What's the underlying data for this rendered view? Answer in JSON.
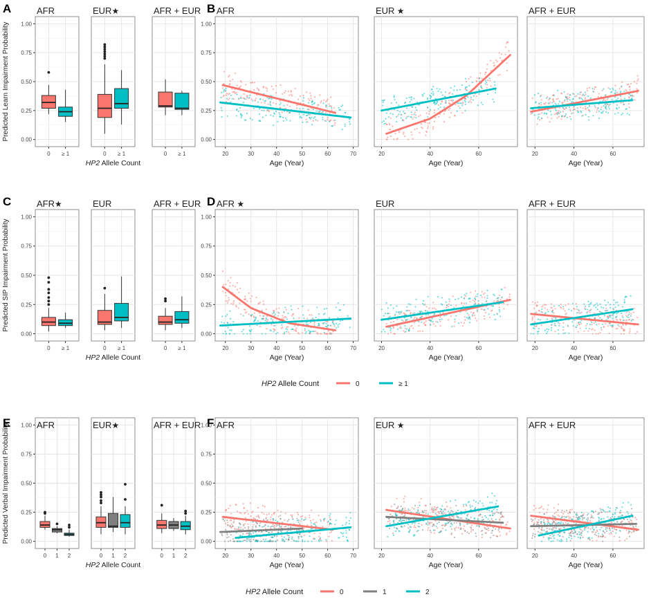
{
  "figure": {
    "panel_letters": [
      "A",
      "B",
      "C",
      "D",
      "E",
      "F"
    ],
    "star": "★",
    "x_axis_box": "Allele Count",
    "x_axis_box_italic": "HP2",
    "x_axis_scatter": "Age (Year)",
    "legend_title_italic": "HP2",
    "legend_title": " Allele Count",
    "colors": {
      "g0": "#F8766D",
      "g1": "#7F7F7F",
      "g2": "#00BFC4",
      "panel_border": "#8c8c8c",
      "grid": "#e5e5e5"
    }
  },
  "legends": [
    {
      "items": [
        {
          "label": "0",
          "color": "#F8766D"
        },
        {
          "label": "≥ 1",
          "color": "#00BFC4"
        }
      ]
    },
    {
      "items": [
        {
          "label": "0",
          "color": "#F8766D"
        },
        {
          "label": "1",
          "color": "#7F7F7F"
        },
        {
          "label": "2",
          "color": "#00BFC4"
        }
      ]
    }
  ],
  "chart_data": [
    {
      "type": "box",
      "row": "Learn",
      "ylabel": "Predicted Learn Impairment Probability",
      "ylim": [
        0,
        1
      ],
      "yticks": [
        "0.00",
        "0.25",
        "0.50",
        "0.75",
        "1.00"
      ],
      "facets": [
        {
          "title": "AFR",
          "star": false,
          "categories": [
            "0",
            "≥ 1"
          ],
          "boxes": [
            {
              "q1": 0.27,
              "median": 0.32,
              "q3": 0.38,
              "low": 0.22,
              "high": 0.47,
              "outliers": [
                0.58
              ]
            },
            {
              "q1": 0.2,
              "median": 0.24,
              "q3": 0.28,
              "low": 0.15,
              "high": 0.43,
              "outliers": []
            }
          ]
        },
        {
          "title": "EUR",
          "star": true,
          "categories": [
            "0",
            "≥ 1"
          ],
          "boxes": [
            {
              "q1": 0.19,
              "median": 0.27,
              "q3": 0.39,
              "low": 0.05,
              "high": 0.65,
              "outliers": [
                0.7,
                0.72,
                0.74,
                0.76,
                0.78,
                0.8,
                0.82
              ]
            },
            {
              "q1": 0.27,
              "median": 0.31,
              "q3": 0.44,
              "low": 0.13,
              "high": 0.6,
              "outliers": []
            }
          ]
        },
        {
          "title": "AFR + EUR",
          "star": false,
          "categories": [
            "0",
            "≥ 1"
          ],
          "boxes": [
            {
              "q1": 0.28,
              "median": 0.29,
              "q3": 0.41,
              "low": 0.21,
              "high": 0.52,
              "outliers": []
            },
            {
              "q1": 0.26,
              "median": 0.27,
              "q3": 0.4,
              "low": 0.21,
              "high": 0.42,
              "outliers": []
            }
          ]
        }
      ]
    },
    {
      "type": "scatter",
      "row": "Learn",
      "xlabel": "Age (Year)",
      "ylim": [
        0,
        1
      ],
      "facets": [
        {
          "title": "AFR",
          "star": false,
          "xlim": [
            16,
            72
          ],
          "xticks": [
            20,
            30,
            40,
            50,
            60,
            70
          ],
          "series": [
            {
              "group": "0",
              "x": [
                19,
                63
              ],
              "y": [
                0.47,
                0.23
              ]
            },
            {
              "group": "≥ 1",
              "x": [
                18,
                69
              ],
              "y": [
                0.32,
                0.19
              ]
            }
          ]
        },
        {
          "title": "EUR",
          "star": true,
          "xlim": [
            17,
            76
          ],
          "xticks": [
            20,
            40,
            60
          ],
          "series": [
            {
              "group": "0",
              "x": [
                22,
                40,
                55,
                73
              ],
              "y": [
                0.05,
                0.18,
                0.38,
                0.73
              ]
            },
            {
              "group": "≥ 1",
              "x": [
                20,
                67
              ],
              "y": [
                0.25,
                0.44
              ]
            }
          ]
        },
        {
          "title": "AFR + EUR",
          "star": false,
          "xlim": [
            16,
            76
          ],
          "xticks": [
            20,
            40,
            60
          ],
          "series": [
            {
              "group": "0",
              "x": [
                18,
                73
              ],
              "y": [
                0.24,
                0.42
              ]
            },
            {
              "group": "≥ 1",
              "x": [
                18,
                70
              ],
              "y": [
                0.27,
                0.34
              ]
            }
          ]
        }
      ]
    },
    {
      "type": "box",
      "row": "SIP",
      "ylabel": "Predicted SIP Impairment Probability",
      "ylim": [
        0,
        1
      ],
      "yticks": [
        "0.00",
        "0.25",
        "0.50",
        "0.75",
        "1.00"
      ],
      "facets": [
        {
          "title": "AFR",
          "star": true,
          "categories": [
            "0",
            "≥ 1"
          ],
          "boxes": [
            {
              "q1": 0.07,
              "median": 0.1,
              "q3": 0.14,
              "low": 0.02,
              "high": 0.22,
              "outliers": [
                0.25,
                0.28,
                0.31,
                0.35,
                0.38,
                0.44,
                0.48
              ]
            },
            {
              "q1": 0.07,
              "median": 0.09,
              "q3": 0.12,
              "low": 0.05,
              "high": 0.18,
              "outliers": []
            }
          ]
        },
        {
          "title": "EUR",
          "star": false,
          "categories": [
            "0",
            "≥ 1"
          ],
          "boxes": [
            {
              "q1": 0.08,
              "median": 0.1,
              "q3": 0.2,
              "low": 0.03,
              "high": 0.34,
              "outliers": [
                0.39
              ]
            },
            {
              "q1": 0.11,
              "median": 0.14,
              "q3": 0.26,
              "low": 0.05,
              "high": 0.49,
              "outliers": []
            }
          ]
        },
        {
          "title": "AFR + EUR",
          "star": false,
          "categories": [
            "0",
            "≥ 1"
          ],
          "boxes": [
            {
              "q1": 0.08,
              "median": 0.1,
              "q3": 0.15,
              "low": 0.03,
              "high": 0.22,
              "outliers": [
                0.28,
                0.3
              ]
            },
            {
              "q1": 0.09,
              "median": 0.12,
              "q3": 0.19,
              "low": 0.05,
              "high": 0.32,
              "outliers": []
            }
          ]
        }
      ]
    },
    {
      "type": "scatter",
      "row": "SIP",
      "xlabel": "Age (Year)",
      "ylim": [
        0,
        1
      ],
      "facets": [
        {
          "title": "AFR",
          "star": true,
          "xlim": [
            16,
            72
          ],
          "xticks": [
            20,
            30,
            40,
            50,
            60,
            70
          ],
          "series": [
            {
              "group": "0",
              "x": [
                19,
                30,
                45,
                63
              ],
              "y": [
                0.4,
                0.22,
                0.09,
                0.03
              ]
            },
            {
              "group": "≥ 1",
              "x": [
                18,
                69
              ],
              "y": [
                0.07,
                0.13
              ]
            }
          ]
        },
        {
          "title": "EUR",
          "star": false,
          "xlim": [
            17,
            76
          ],
          "xticks": [
            20,
            40,
            60
          ],
          "series": [
            {
              "group": "0",
              "x": [
                22,
                73
              ],
              "y": [
                0.06,
                0.29
              ]
            },
            {
              "group": "≥ 1",
              "x": [
                20,
                70
              ],
              "y": [
                0.12,
                0.27
              ]
            }
          ]
        },
        {
          "title": "AFR + EUR",
          "star": false,
          "xlim": [
            16,
            76
          ],
          "xticks": [
            20,
            40,
            60
          ],
          "series": [
            {
              "group": "0",
              "x": [
                18,
                73
              ],
              "y": [
                0.17,
                0.08
              ]
            },
            {
              "group": "≥ 1",
              "x": [
                18,
                70
              ],
              "y": [
                0.08,
                0.21
              ]
            }
          ]
        }
      ]
    },
    {
      "type": "box",
      "row": "Verbal",
      "ylabel": "Predicted Verbal Impairment Probability",
      "ylim": [
        0,
        1
      ],
      "yticks": [
        "0.00",
        "0.25",
        "0.50",
        "0.75",
        "1.00"
      ],
      "facets": [
        {
          "title": "AFR",
          "star": false,
          "categories": [
            "0",
            "1",
            "2"
          ],
          "boxes": [
            {
              "q1": 0.12,
              "median": 0.14,
              "q3": 0.17,
              "low": 0.1,
              "high": 0.22,
              "outliers": [
                0.24,
                0.25
              ]
            },
            {
              "q1": 0.08,
              "median": 0.1,
              "q3": 0.11,
              "low": 0.07,
              "high": 0.13,
              "outliers": [
                0.15
              ]
            },
            {
              "q1": 0.05,
              "median": 0.06,
              "q3": 0.07,
              "low": 0.04,
              "high": 0.1,
              "outliers": [
                0.12,
                0.14
              ]
            }
          ]
        },
        {
          "title": "EUR",
          "star": true,
          "categories": [
            "0",
            "1",
            "2"
          ],
          "boxes": [
            {
              "q1": 0.12,
              "median": 0.16,
              "q3": 0.21,
              "low": 0.06,
              "high": 0.3,
              "outliers": [
                0.33,
                0.35,
                0.38,
                0.4,
                0.42
              ]
            },
            {
              "q1": 0.12,
              "median": 0.13,
              "q3": 0.24,
              "low": 0.08,
              "high": 0.38,
              "outliers": []
            },
            {
              "q1": 0.12,
              "median": 0.16,
              "q3": 0.23,
              "low": 0.06,
              "high": 0.3,
              "outliers": [
                0.36,
                0.49
              ]
            }
          ]
        },
        {
          "title": "AFR + EUR",
          "star": false,
          "categories": [
            "0",
            "1",
            "2"
          ],
          "boxes": [
            {
              "q1": 0.11,
              "median": 0.14,
              "q3": 0.18,
              "low": 0.07,
              "high": 0.24,
              "outliers": [
                0.31
              ]
            },
            {
              "q1": 0.11,
              "median": 0.14,
              "q3": 0.17,
              "low": 0.09,
              "high": 0.2,
              "outliers": []
            },
            {
              "q1": 0.1,
              "median": 0.13,
              "q3": 0.17,
              "low": 0.06,
              "high": 0.22,
              "outliers": [
                0.24,
                0.26
              ]
            }
          ]
        }
      ]
    },
    {
      "type": "scatter",
      "row": "Verbal",
      "xlabel": "Age (Year)",
      "ylim": [
        0,
        1
      ],
      "facets": [
        {
          "title": "AFR",
          "star": false,
          "xlim": [
            16,
            72
          ],
          "xticks": [
            20,
            30,
            40,
            50,
            60,
            70
          ],
          "series": [
            {
              "group": "0",
              "x": [
                19,
                62
              ],
              "y": [
                0.21,
                0.1
              ]
            },
            {
              "group": "1",
              "x": [
                18,
                50
              ],
              "y": [
                0.08,
                0.11
              ]
            },
            {
              "group": "2",
              "x": [
                24,
                69
              ],
              "y": [
                0.03,
                0.12
              ]
            }
          ]
        },
        {
          "title": "EUR",
          "star": true,
          "xlim": [
            17,
            76
          ],
          "xticks": [
            20,
            40,
            60
          ],
          "series": [
            {
              "group": "0",
              "x": [
                22,
                73
              ],
              "y": [
                0.27,
                0.11
              ]
            },
            {
              "group": "1",
              "x": [
                22,
                70
              ],
              "y": [
                0.21,
                0.16
              ]
            },
            {
              "group": "2",
              "x": [
                22,
                68
              ],
              "y": [
                0.13,
                0.3
              ]
            }
          ]
        },
        {
          "title": "AFR + EUR",
          "star": false,
          "xlim": [
            16,
            76
          ],
          "xticks": [
            20,
            40,
            60
          ],
          "series": [
            {
              "group": "0",
              "x": [
                18,
                73
              ],
              "y": [
                0.22,
                0.1
              ]
            },
            {
              "group": "1",
              "x": [
                18,
                72
              ],
              "y": [
                0.13,
                0.15
              ]
            },
            {
              "group": "2",
              "x": [
                22,
                70
              ],
              "y": [
                0.05,
                0.22
              ]
            }
          ]
        }
      ]
    }
  ]
}
